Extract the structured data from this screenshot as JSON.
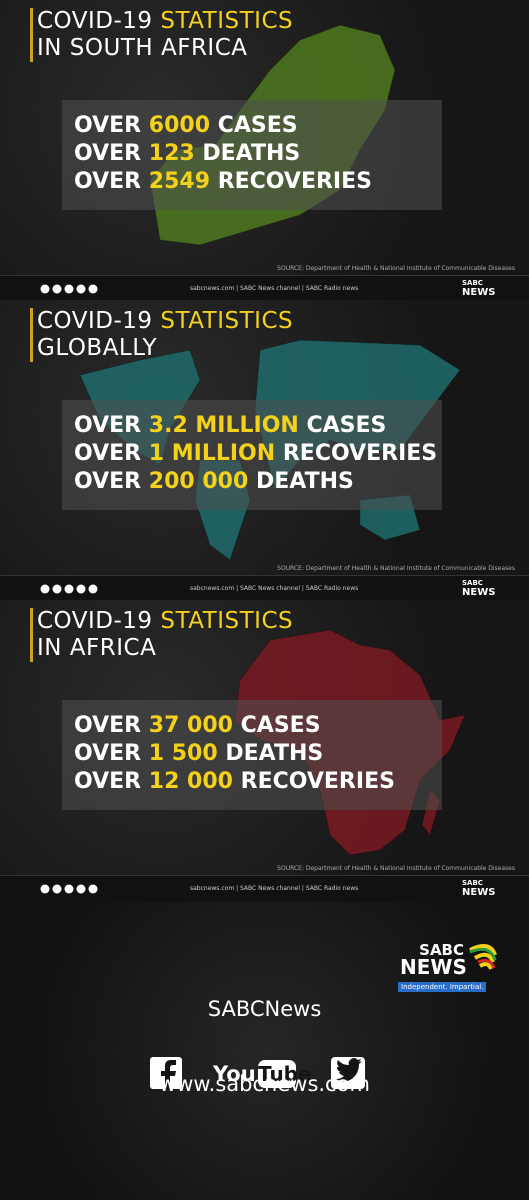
{
  "panels": [
    {
      "title": [
        "COVID-19",
        "STATISTICS",
        "IN SOUTH AFRICA"
      ],
      "stats": [
        {
          "prefix": "OVER",
          "value": "6000",
          "label": "CASES"
        },
        {
          "prefix": "OVER",
          "value": "123",
          "label": "DEATHS"
        },
        {
          "prefix": "OVER",
          "value": "2549",
          "label": "RECOVERIES"
        }
      ],
      "source": "SOURCE: Department of Health & National Institute of Communicable Diseases"
    },
    {
      "title": [
        "COVID-19",
        "STATISTICS",
        "GLOBALLY"
      ],
      "stats": [
        {
          "prefix": "OVER",
          "value": "3.2 MILLION",
          "label": "CASES"
        },
        {
          "prefix": "OVER",
          "value": "1 MILLION",
          "label": "RECOVERIES"
        },
        {
          "prefix": "OVER",
          "value": "200 000",
          "label": "DEATHS"
        }
      ],
      "source": "SOURCE: Department of Health & National Institute of Communicable Diseases"
    },
    {
      "title": [
        "COVID-19",
        "STATISTICS",
        "IN AFRICA"
      ],
      "stats": [
        {
          "prefix": "OVER",
          "value": "37 000",
          "label": "CASES"
        },
        {
          "prefix": "OVER",
          "value": "1 500",
          "label": "DEATHS"
        },
        {
          "prefix": "OVER",
          "value": "12 000",
          "label": "RECOVERIES"
        }
      ],
      "source": "SOURCE: Department of Health & National Institute of Communicable Diseases"
    }
  ],
  "footer_bar": {
    "links": "sabcnews.com | SABC News channel | SABC Radio news",
    "logo_top": "SABC",
    "logo_bottom": "NEWS"
  },
  "final": {
    "logo_top": "SABC",
    "logo_bottom": "NEWS",
    "tagline": "Independent. Impartial.",
    "handle": "SABCNews",
    "youtube_you": "You",
    "youtube_tube": "Tube",
    "website": "www.sabcnews.com"
  }
}
